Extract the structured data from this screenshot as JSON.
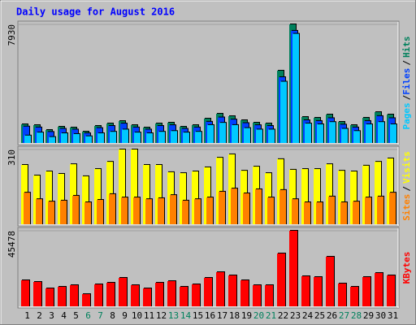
{
  "title": "Daily usage for August 2016",
  "legend_separator": "/",
  "chart_data": [
    {
      "type": "bar",
      "ylim": [
        0,
        7930
      ],
      "yticks": [
        7930
      ],
      "series": [
        {
          "name": "Hits",
          "color": "#00805c",
          "values": [
            1249,
            1195,
            869,
            1086,
            1032,
            760,
            1141,
            1303,
            1466,
            1195,
            1032,
            1303,
            1358,
            1086,
            1195,
            1629,
            1955,
            1792,
            1521,
            1358,
            1303,
            4834,
            7930,
            1738,
            1684,
            1901,
            1412,
            1195,
            1684,
            2064,
            1901
          ]
        },
        {
          "name": "Files",
          "color": "#0040ff",
          "values": [
            1100,
            1040,
            740,
            950,
            900,
            650,
            1000,
            1140,
            1300,
            1040,
            900,
            1140,
            1190,
            950,
            1040,
            1420,
            1710,
            1570,
            1330,
            1190,
            1140,
            4400,
            7500,
            1520,
            1470,
            1660,
            1230,
            1040,
            1470,
            1800,
            1660
          ]
        },
        {
          "name": "Pages",
          "color": "#00c8ff",
          "values": [
            500,
            700,
            400,
            650,
            600,
            450,
            650,
            750,
            900,
            700,
            650,
            750,
            800,
            700,
            750,
            1200,
            1350,
            1200,
            1000,
            900,
            900,
            4100,
            7300,
            1300,
            1250,
            1400,
            950,
            800,
            1250,
            1400,
            1250
          ]
        }
      ]
    },
    {
      "type": "bar",
      "ylim": [
        0,
        310
      ],
      "yticks": [
        310
      ],
      "series": [
        {
          "name": "Visits",
          "color": "#ffff00",
          "values": [
            246,
            202,
            219,
            209,
            249,
            199,
            229,
            259,
            310,
            310,
            246,
            246,
            216,
            212,
            219,
            236,
            276,
            290,
            222,
            239,
            212,
            270,
            226,
            229,
            229,
            249,
            222,
            219,
            243,
            259,
            273
          ]
        },
        {
          "name": "Sites",
          "color": "#ff8000",
          "values": [
            131,
            104,
            94,
            98,
            118,
            91,
            101,
            125,
            111,
            111,
            104,
            108,
            121,
            98,
            104,
            111,
            135,
            148,
            128,
            145,
            111,
            142,
            104,
            91,
            91,
            115,
            91,
            94,
            111,
            115,
            131
          ]
        }
      ]
    },
    {
      "type": "bar",
      "ylim": [
        0,
        45478
      ],
      "yticks": [
        45478
      ],
      "categories": [
        "1",
        "2",
        "3",
        "4",
        "5",
        "6",
        "7",
        "8",
        "9",
        "10",
        "11",
        "12",
        "13",
        "14",
        "15",
        "16",
        "17",
        "18",
        "19",
        "20",
        "21",
        "22",
        "23",
        "24",
        "25",
        "26",
        "27",
        "28",
        "29",
        "30",
        "31"
      ],
      "category_colors": [
        "#000000",
        "#000000",
        "#000000",
        "#000000",
        "#000000",
        "#00805c",
        "#00805c",
        "#000000",
        "#000000",
        "#000000",
        "#000000",
        "#000000",
        "#00805c",
        "#00805c",
        "#000000",
        "#000000",
        "#000000",
        "#000000",
        "#000000",
        "#00805c",
        "#00805c",
        "#000000",
        "#000000",
        "#000000",
        "#000000",
        "#000000",
        "#00805c",
        "#00805c",
        "#000000",
        "#000000",
        "#000000"
      ],
      "series": [
        {
          "name": "KBytes",
          "color": "#ff0000",
          "values": [
            15648,
            14670,
            10758,
            11736,
            12714,
            7335,
            13203,
            14181,
            17115,
            12714,
            10758,
            14181,
            15159,
            11736,
            13203,
            17115,
            20538,
            18582,
            15648,
            12714,
            12714,
            31785,
            45478,
            18093,
            17604,
            29829,
            13692,
            11736,
            17604,
            20049,
            18582
          ]
        }
      ]
    }
  ]
}
